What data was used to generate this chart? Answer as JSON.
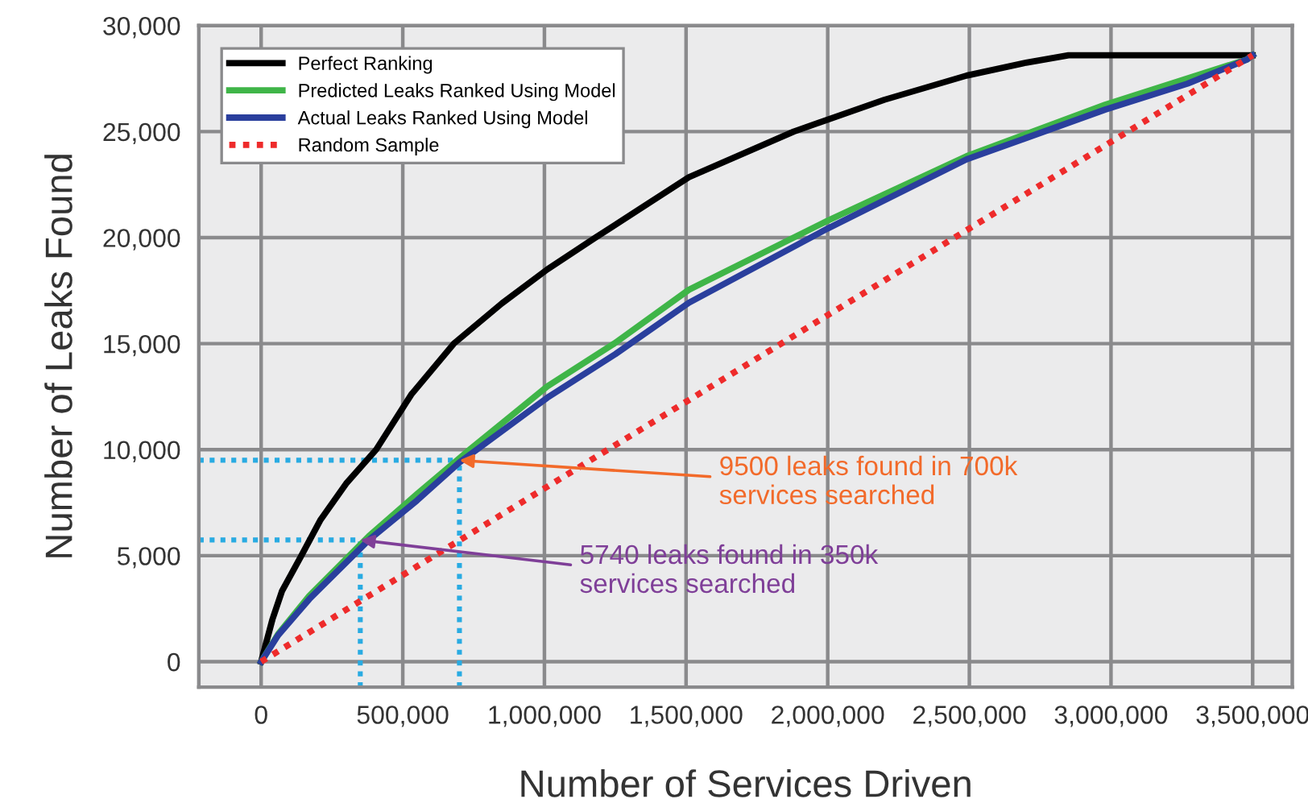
{
  "chart_data": {
    "type": "line",
    "xlabel": "Number of Services Driven",
    "ylabel": "Number of Leaks Found",
    "xlim": [
      -220000,
      3640000
    ],
    "ylim": [
      -1200,
      30000
    ],
    "xticks": [
      {
        "value": 0,
        "label": "0"
      },
      {
        "value": 500000,
        "label": "500,000"
      },
      {
        "value": 1000000,
        "label": "1,000,000"
      },
      {
        "value": 1500000,
        "label": "1,500,000"
      },
      {
        "value": 2000000,
        "label": "2,000,000"
      },
      {
        "value": 2500000,
        "label": "2,500,000"
      },
      {
        "value": 3000000,
        "label": "3,000,000"
      },
      {
        "value": 3500000,
        "label": "3,500,000"
      }
    ],
    "yticks": [
      {
        "value": 0,
        "label": "0"
      },
      {
        "value": 5000,
        "label": "5,000"
      },
      {
        "value": 10000,
        "label": "10,000"
      },
      {
        "value": 15000,
        "label": "15,000"
      },
      {
        "value": 20000,
        "label": "20,000"
      },
      {
        "value": 25000,
        "label": "25,000"
      },
      {
        "value": 30000,
        "label": "30,000"
      }
    ],
    "grid": true,
    "legend": "top left",
    "series": [
      {
        "name": "Perfect Ranking",
        "color": "#000000",
        "line_style": "solid",
        "x": [
          0,
          40000,
          74000,
          142000,
          210000,
          300000,
          406000,
          530000,
          680000,
          850000,
          1010000,
          1180000,
          1510000,
          1880000,
          2200000,
          2490000,
          2700000,
          2850000,
          3500000
        ],
        "values": [
          0,
          2000,
          3340,
          5000,
          6700,
          8400,
          10000,
          12600,
          15000,
          16900,
          18500,
          20000,
          22850,
          25000,
          26500,
          27640,
          28250,
          28600,
          28600
        ]
      },
      {
        "name": "Predicted Leaks Ranked Using Model",
        "color": "#3fb548",
        "line_style": "solid",
        "x": [
          0,
          60000,
          170000,
          380000,
          550000,
          736000,
          1010000,
          1246000,
          1510000,
          2000000,
          2490000,
          2980000,
          3480000,
          3500000
        ],
        "values": [
          0,
          1300,
          3110,
          5920,
          7900,
          10000,
          12980,
          15000,
          17540,
          20800,
          23840,
          26270,
          28400,
          28600
        ]
      },
      {
        "name": "Actual Leaks Ranked Using Model",
        "color": "#2a3f9d",
        "line_style": "solid",
        "x": [
          0,
          60000,
          170000,
          380000,
          550000,
          700000,
          1010000,
          1250000,
          1510000,
          2000000,
          2490000,
          2980000,
          3270000,
          3480000,
          3500000
        ],
        "values": [
          0,
          1250,
          2950,
          5740,
          7600,
          9400,
          12450,
          14500,
          16930,
          20430,
          23690,
          26040,
          27260,
          28400,
          28600
        ]
      },
      {
        "name": "Random Sample",
        "color": "#ee2b2b",
        "line_style": "dotted",
        "x": [
          0,
          3500000
        ],
        "values": [
          0,
          28600
        ]
      }
    ],
    "ref_lines": [
      {
        "axis": "y",
        "value": 9500,
        "color": "#29abe2",
        "line_style": "dotted"
      },
      {
        "axis": "x",
        "value": 700000,
        "color": "#29abe2",
        "line_style": "dotted"
      },
      {
        "axis": "y",
        "value": 5740,
        "color": "#29abe2",
        "line_style": "dotted"
      },
      {
        "axis": "x",
        "value": 350000,
        "color": "#29abe2",
        "line_style": "dotted"
      }
    ],
    "annotations": [
      {
        "text": "9500 leaks found in 700k\nservices searched",
        "x": 700000,
        "y": 9500
      },
      {
        "text": "5740 leaks found in 350k\nservices searched",
        "x": 350000,
        "y": 5740
      }
    ]
  }
}
